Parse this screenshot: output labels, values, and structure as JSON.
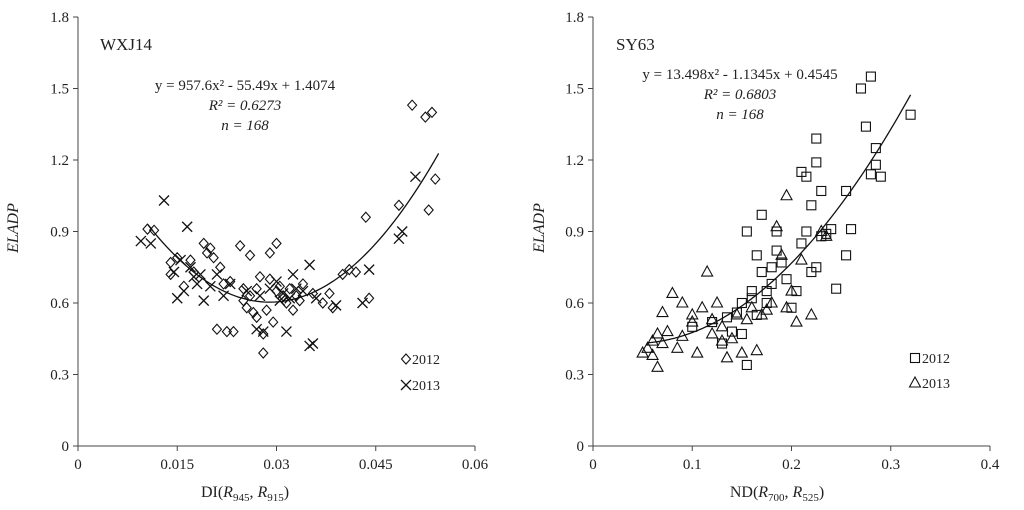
{
  "figure": {
    "name": "two-panel-scatter"
  },
  "chart_data": [
    {
      "id": "wxj14",
      "type": "scatter",
      "panel_label": "WXJ14",
      "xlabel_main": "DI(",
      "xlabel_parts": [
        {
          "t": "DI(",
          "i": false,
          "sub": null
        },
        {
          "t": "R",
          "i": true,
          "sub": "945"
        },
        {
          "t": ", ",
          "i": false,
          "sub": null
        },
        {
          "t": "R",
          "i": true,
          "sub": "915"
        },
        {
          "t": ")",
          "i": false,
          "sub": null
        }
      ],
      "ylabel": "ELADP",
      "xlim": [
        0,
        0.06
      ],
      "ylim": [
        0,
        1.8
      ],
      "x_ticks": [
        0,
        0.015,
        0.03,
        0.045,
        0.06
      ],
      "x_tick_labels": [
        "0",
        "0.015",
        "0.03",
        "0.045",
        "0.06"
      ],
      "y_ticks": [
        0,
        0.3,
        0.6,
        0.9,
        1.2,
        1.5,
        1.8
      ],
      "y_tick_labels": [
        "0",
        "0.3",
        "0.6",
        "0.9",
        "1.2",
        "1.5",
        "1.8"
      ],
      "equation": "y = 957.6x² - 55.49x + 1.4074",
      "r2": "R² = 0.6273",
      "n": "n = 168",
      "fit": {
        "a": 957.6,
        "b": -55.49,
        "c": 1.4074,
        "x_range": [
          0.0105,
          0.0545
        ]
      },
      "legend_position": "bottom-right",
      "series": [
        {
          "name": "2012",
          "marker": "diamond",
          "points": [
            [
              0.0105,
              0.91
            ],
            [
              0.0115,
              0.905
            ],
            [
              0.014,
              0.77
            ],
            [
              0.014,
              0.72
            ],
            [
              0.015,
              0.79
            ],
            [
              0.016,
              0.67
            ],
            [
              0.017,
              0.78
            ],
            [
              0.0175,
              0.73
            ],
            [
              0.019,
              0.85
            ],
            [
              0.0195,
              0.81
            ],
            [
              0.02,
              0.83
            ],
            [
              0.0205,
              0.79
            ],
            [
              0.021,
              0.49
            ],
            [
              0.0215,
              0.75
            ],
            [
              0.022,
              0.68
            ],
            [
              0.0225,
              0.48
            ],
            [
              0.023,
              0.69
            ],
            [
              0.0235,
              0.48
            ],
            [
              0.0245,
              0.84
            ],
            [
              0.025,
              0.66
            ],
            [
              0.025,
              0.61
            ],
            [
              0.0255,
              0.58
            ],
            [
              0.026,
              0.8
            ],
            [
              0.026,
              0.63
            ],
            [
              0.0265,
              0.56
            ],
            [
              0.027,
              0.54
            ],
            [
              0.027,
              0.66
            ],
            [
              0.0275,
              0.71
            ],
            [
              0.028,
              0.47
            ],
            [
              0.028,
              0.39
            ],
            [
              0.0285,
              0.57
            ],
            [
              0.029,
              0.7
            ],
            [
              0.029,
              0.81
            ],
            [
              0.0295,
              0.52
            ],
            [
              0.03,
              0.65
            ],
            [
              0.03,
              0.85
            ],
            [
              0.0305,
              0.67
            ],
            [
              0.031,
              0.63
            ],
            [
              0.0315,
              0.6
            ],
            [
              0.032,
              0.66
            ],
            [
              0.0325,
              0.57
            ],
            [
              0.033,
              0.63
            ],
            [
              0.0335,
              0.61
            ],
            [
              0.034,
              0.68
            ],
            [
              0.0355,
              0.64
            ],
            [
              0.037,
              0.6
            ],
            [
              0.038,
              0.64
            ],
            [
              0.0385,
              0.58
            ],
            [
              0.04,
              0.72
            ],
            [
              0.041,
              0.74
            ],
            [
              0.042,
              0.73
            ],
            [
              0.0435,
              0.96
            ],
            [
              0.044,
              0.62
            ],
            [
              0.0485,
              1.01
            ],
            [
              0.0505,
              1.43
            ],
            [
              0.0525,
              1.38
            ],
            [
              0.053,
              0.99
            ],
            [
              0.0535,
              1.4
            ],
            [
              0.054,
              1.12
            ]
          ]
        },
        {
          "name": "2013",
          "marker": "cross",
          "points": [
            [
              0.0095,
              0.86
            ],
            [
              0.011,
              0.85
            ],
            [
              0.013,
              1.03
            ],
            [
              0.0145,
              0.73
            ],
            [
              0.015,
              0.62
            ],
            [
              0.0155,
              0.78
            ],
            [
              0.016,
              0.65
            ],
            [
              0.0165,
              0.92
            ],
            [
              0.017,
              0.75
            ],
            [
              0.0175,
              0.71
            ],
            [
              0.018,
              0.68
            ],
            [
              0.0185,
              0.72
            ],
            [
              0.019,
              0.61
            ],
            [
              0.02,
              0.67
            ],
            [
              0.021,
              0.72
            ],
            [
              0.022,
              0.63
            ],
            [
              0.023,
              0.68
            ],
            [
              0.0255,
              0.65
            ],
            [
              0.027,
              0.49
            ],
            [
              0.0275,
              0.63
            ],
            [
              0.028,
              0.48
            ],
            [
              0.029,
              0.66
            ],
            [
              0.03,
              0.69
            ],
            [
              0.0305,
              0.61
            ],
            [
              0.031,
              0.64
            ],
            [
              0.0315,
              0.48
            ],
            [
              0.032,
              0.62
            ],
            [
              0.0325,
              0.72
            ],
            [
              0.033,
              0.66
            ],
            [
              0.034,
              0.65
            ],
            [
              0.035,
              0.76
            ],
            [
              0.035,
              0.42
            ],
            [
              0.0355,
              0.43
            ],
            [
              0.036,
              0.62
            ],
            [
              0.039,
              0.59
            ],
            [
              0.043,
              0.6
            ],
            [
              0.044,
              0.74
            ],
            [
              0.0485,
              0.87
            ],
            [
              0.049,
              0.9
            ],
            [
              0.051,
              1.13
            ]
          ]
        }
      ]
    },
    {
      "id": "sy63",
      "type": "scatter",
      "panel_label": "SY63",
      "xlabel_parts": [
        {
          "t": "ND(",
          "i": false,
          "sub": null
        },
        {
          "t": "R",
          "i": true,
          "sub": "700"
        },
        {
          "t": ", ",
          "i": false,
          "sub": null
        },
        {
          "t": "R",
          "i": true,
          "sub": "525"
        },
        {
          "t": ")",
          "i": false,
          "sub": null
        }
      ],
      "ylabel": "ELADP",
      "xlim": [
        0,
        0.4
      ],
      "ylim": [
        0,
        1.8
      ],
      "x_ticks": [
        0,
        0.1,
        0.2,
        0.3,
        0.4
      ],
      "x_tick_labels": [
        "0",
        "0.1",
        "0.2",
        "0.3",
        "0.4"
      ],
      "y_ticks": [
        0,
        0.3,
        0.6,
        0.9,
        1.2,
        1.5,
        1.8
      ],
      "y_tick_labels": [
        "0",
        "0.3",
        "0.6",
        "0.9",
        "1.2",
        "1.5",
        "1.8"
      ],
      "equation": "y = 13.498x² - 1.1345x + 0.4545",
      "r2": "R² = 0.6803",
      "n": "n = 168",
      "fit": {
        "a": 13.498,
        "b": -1.1345,
        "c": 0.4545,
        "x_range": [
          0.055,
          0.32
        ]
      },
      "legend_position": "bottom-right",
      "series": [
        {
          "name": "2012",
          "marker": "square",
          "points": [
            [
              0.1,
              0.5
            ],
            [
              0.12,
              0.52
            ],
            [
              0.13,
              0.43
            ],
            [
              0.135,
              0.54
            ],
            [
              0.14,
              0.48
            ],
            [
              0.145,
              0.56
            ],
            [
              0.15,
              0.6
            ],
            [
              0.15,
              0.47
            ],
            [
              0.155,
              0.34
            ],
            [
              0.155,
              0.9
            ],
            [
              0.16,
              0.65
            ],
            [
              0.16,
              0.62
            ],
            [
              0.165,
              0.55
            ],
            [
              0.165,
              0.8
            ],
            [
              0.17,
              0.97
            ],
            [
              0.17,
              0.73
            ],
            [
              0.175,
              0.6
            ],
            [
              0.175,
              0.65
            ],
            [
              0.18,
              0.75
            ],
            [
              0.18,
              0.68
            ],
            [
              0.185,
              0.9
            ],
            [
              0.185,
              0.82
            ],
            [
              0.19,
              0.77
            ],
            [
              0.195,
              0.7
            ],
            [
              0.2,
              0.58
            ],
            [
              0.205,
              0.65
            ],
            [
              0.21,
              1.15
            ],
            [
              0.21,
              0.85
            ],
            [
              0.215,
              0.9
            ],
            [
              0.215,
              1.13
            ],
            [
              0.22,
              0.73
            ],
            [
              0.22,
              1.01
            ],
            [
              0.225,
              0.75
            ],
            [
              0.225,
              1.29
            ],
            [
              0.225,
              1.19
            ],
            [
              0.23,
              1.07
            ],
            [
              0.23,
              0.88
            ],
            [
              0.235,
              0.89
            ],
            [
              0.24,
              0.91
            ],
            [
              0.245,
              0.66
            ],
            [
              0.255,
              1.07
            ],
            [
              0.255,
              0.8
            ],
            [
              0.26,
              0.91
            ],
            [
              0.27,
              1.5
            ],
            [
              0.275,
              1.34
            ],
            [
              0.28,
              1.55
            ],
            [
              0.28,
              1.14
            ],
            [
              0.285,
              1.25
            ],
            [
              0.285,
              1.18
            ],
            [
              0.29,
              1.13
            ],
            [
              0.32,
              1.39
            ]
          ]
        },
        {
          "name": "2013",
          "marker": "triangle",
          "points": [
            [
              0.05,
              0.39
            ],
            [
              0.055,
              0.41
            ],
            [
              0.06,
              0.38
            ],
            [
              0.06,
              0.44
            ],
            [
              0.065,
              0.33
            ],
            [
              0.065,
              0.47
            ],
            [
              0.07,
              0.43
            ],
            [
              0.07,
              0.56
            ],
            [
              0.075,
              0.48
            ],
            [
              0.08,
              0.64
            ],
            [
              0.085,
              0.41
            ],
            [
              0.09,
              0.6
            ],
            [
              0.09,
              0.46
            ],
            [
              0.1,
              0.55
            ],
            [
              0.1,
              0.52
            ],
            [
              0.105,
              0.39
            ],
            [
              0.11,
              0.58
            ],
            [
              0.115,
              0.73
            ],
            [
              0.12,
              0.47
            ],
            [
              0.12,
              0.53
            ],
            [
              0.125,
              0.6
            ],
            [
              0.13,
              0.5
            ],
            [
              0.13,
              0.44
            ],
            [
              0.135,
              0.37
            ],
            [
              0.14,
              0.45
            ],
            [
              0.145,
              0.55
            ],
            [
              0.15,
              0.39
            ],
            [
              0.155,
              0.53
            ],
            [
              0.16,
              0.58
            ],
            [
              0.165,
              0.4
            ],
            [
              0.17,
              0.55
            ],
            [
              0.175,
              0.57
            ],
            [
              0.18,
              0.6
            ],
            [
              0.185,
              0.92
            ],
            [
              0.19,
              0.8
            ],
            [
              0.195,
              1.05
            ],
            [
              0.195,
              0.58
            ],
            [
              0.2,
              0.65
            ],
            [
              0.205,
              0.52
            ],
            [
              0.21,
              0.78
            ],
            [
              0.22,
              0.55
            ],
            [
              0.23,
              0.9
            ],
            [
              0.235,
              0.88
            ]
          ]
        }
      ]
    }
  ]
}
